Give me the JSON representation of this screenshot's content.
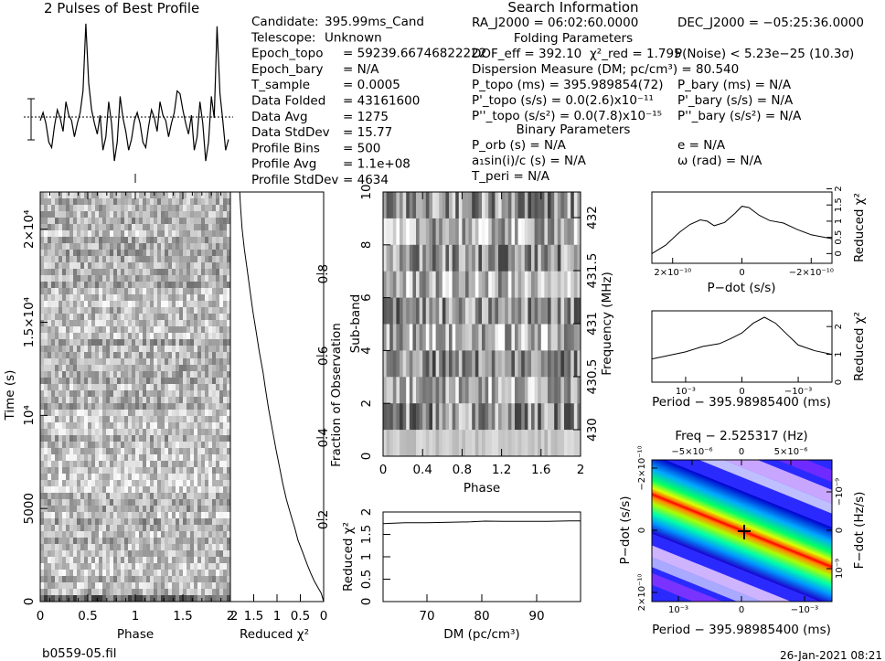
{
  "profile_title": "2 Pulses of Best Profile",
  "search_title": "Search Information",
  "file_name": "b0559-05.fil",
  "date_stamp": "26-Jan-2021 08:21",
  "info_left": [
    {
      "label": "Candidate:",
      "value": "395.99ms_Cand"
    },
    {
      "label": "Telescope:",
      "value": "Unknown"
    },
    {
      "label": "Epoch_topo",
      "value": "= 59239.66746822222"
    },
    {
      "label": "Epoch_bary",
      "value": "= N/A"
    },
    {
      "label": "T_sample",
      "value": "= 0.0005"
    },
    {
      "label": "Data Folded",
      "value": "= 43161600"
    },
    {
      "label": "Data Avg",
      "value": "= 1275"
    },
    {
      "label": "Data StdDev",
      "value": "= 15.77"
    },
    {
      "label": "Profile Bins",
      "value": "= 500"
    },
    {
      "label": "Profile Avg",
      "value": "= 1.1e+08"
    },
    {
      "label": "Profile StdDev",
      "value": "= 4634"
    }
  ],
  "info_right": {
    "ra": "RA_J2000 = 06:02:60.0000",
    "dec": "DEC_J2000 = −05:25:36.0000",
    "folding_header": "Folding Parameters",
    "dof": "DOF_eff = 392.10",
    "chi2": "χ²_red = 1.795",
    "pnoise": "P(Noise) < 5.23e−25 (10.3σ)",
    "dm": "Dispersion Measure (DM; pc/cm³) = 80.540",
    "ptopo": "P_topo (ms) = 395.989854(72)",
    "pbary": "P_bary (ms) = N/A",
    "pdtopo": "P'_topo (s/s) = 0.0(2.6)x10⁻¹¹",
    "pdbary": "P'_bary (s/s) = N/A",
    "pddtopo": "P''_topo (s/s²) = 0.0(7.8)x10⁻¹⁵",
    "pddbary": "P''_bary (s/s²) = N/A",
    "binary_header": "Binary Parameters",
    "porb": "P_orb (s) = N/A",
    "e": "e = N/A",
    "a1": "a₁sin(i)/c (s) = N/A",
    "omega": "ω (rad) = N/A",
    "tperi": "T_peri = N/A"
  },
  "chart_data": [
    {
      "id": "pulse-profile",
      "type": "line",
      "title": "2 Pulses of Best Profile",
      "xlabel": "Phase",
      "ylabel": "",
      "xlim": [
        0,
        2
      ],
      "x": [
        0.0,
        0.03,
        0.06,
        0.09,
        0.12,
        0.15,
        0.18,
        0.21,
        0.24,
        0.27,
        0.3,
        0.33,
        0.36,
        0.39,
        0.42,
        0.45,
        0.48,
        0.51,
        0.54,
        0.57,
        0.6,
        0.63,
        0.66,
        0.69,
        0.72,
        0.75,
        0.78,
        0.81,
        0.84,
        0.87,
        0.9,
        0.93,
        0.96,
        0.99,
        1.02,
        1.05,
        1.08,
        1.11,
        1.14,
        1.17,
        1.2,
        1.23,
        1.26,
        1.29,
        1.32,
        1.35,
        1.38,
        1.41,
        1.44,
        1.47,
        1.5,
        1.53,
        1.56,
        1.59,
        1.62,
        1.65,
        1.68,
        1.71,
        1.74,
        1.77,
        1.8,
        1.83,
        1.86,
        1.89,
        1.92,
        1.95,
        1.98
      ],
      "y": [
        0.2,
        0.5,
        0.1,
        -0.6,
        -0.8,
        0.0,
        0.6,
        0.3,
        -0.2,
        0.9,
        0.4,
        0.2,
        -0.4,
        0.1,
        0.5,
        1.3,
        3.8,
        1.6,
        0.6,
        0.1,
        -0.3,
        0.4,
        -0.9,
        -0.4,
        0.9,
        0.1,
        -1.3,
        -0.6,
        1.1,
        0.3,
        -0.2,
        -0.9,
        -0.5,
        0.2,
        0.5,
        0.1,
        -0.6,
        -0.8,
        0.0,
        0.6,
        0.3,
        -0.2,
        0.9,
        0.4,
        0.2,
        -0.4,
        0.1,
        0.5,
        1.3,
        1.2,
        0.6,
        0.1,
        -0.3,
        0.4,
        -0.9,
        -0.4,
        0.9,
        0.1,
        -1.3,
        -0.6,
        1.1,
        0.3,
        3.7,
        1.2,
        0.2,
        -0.9,
        -0.5
      ]
    },
    {
      "id": "time-phase",
      "type": "heatmap",
      "xlabel": "Phase",
      "ylabel": "Time (s)",
      "xlim": [
        0,
        2
      ],
      "ylim": [
        0,
        22000
      ],
      "xticks": [
        "0",
        "0.5",
        "1",
        "1.5",
        "2"
      ],
      "yticks": [
        {
          "v": 0,
          "label": "0"
        },
        {
          "v": 5000,
          "label": "5000"
        },
        {
          "v": 10000,
          "label": "10⁴"
        },
        {
          "v": 15000,
          "label": "1.5×10⁴"
        },
        {
          "v": 20000,
          "label": "2×10⁴"
        }
      ],
      "colormap": "grayscale"
    },
    {
      "id": "chi2-vs-time",
      "type": "line",
      "xlabel": "Reduced χ²",
      "ylabel": "Fraction of Observation",
      "xlim": [
        2,
        0
      ],
      "ylim": [
        0,
        1
      ],
      "xticks": [
        "2",
        "1.5",
        "1",
        "0.5",
        "0"
      ],
      "yticks": [
        "0.2",
        "0.4",
        "0.6",
        "0.8"
      ],
      "x": [
        0.0,
        0.05,
        0.1,
        0.2,
        0.28,
        0.35,
        0.45,
        0.55,
        0.62,
        0.7,
        0.8,
        0.88,
        0.95,
        1.02,
        1.1,
        1.18,
        1.25,
        1.3,
        1.38,
        1.45,
        1.52,
        1.58,
        1.64,
        1.7,
        1.75,
        1.78,
        1.8
      ],
      "y": [
        0.0,
        0.02,
        0.03,
        0.05,
        0.07,
        0.09,
        0.12,
        0.15,
        0.18,
        0.21,
        0.25,
        0.29,
        0.33,
        0.37,
        0.42,
        0.47,
        0.52,
        0.56,
        0.61,
        0.66,
        0.71,
        0.76,
        0.81,
        0.86,
        0.91,
        0.96,
        1.0
      ]
    },
    {
      "id": "subband-phase",
      "type": "heatmap",
      "xlabel": "Phase",
      "ylabel": "Sub-band",
      "y2label": "Frequency (MHz)",
      "xlim": [
        0,
        2
      ],
      "ylim": [
        0,
        10
      ],
      "xticks": [
        "0",
        "0.4",
        "0.8",
        "1.2",
        "1.6",
        "2"
      ],
      "yticks": [
        "0",
        "2",
        "4",
        "6",
        "8",
        "10"
      ],
      "y2ticks": [
        "430",
        "430.5",
        "431",
        "431.5",
        "432"
      ],
      "colormap": "grayscale"
    },
    {
      "id": "chi2-vs-dm",
      "type": "line",
      "xlabel": "DM (pc/cm³)",
      "ylabel": "Reduced χ²",
      "xlim": [
        62,
        98
      ],
      "ylim": [
        0,
        2
      ],
      "xticks": [
        "70",
        "80",
        "90"
      ],
      "yticks": [
        "0",
        "0.5",
        "1",
        "1.5",
        "2"
      ],
      "x": [
        62,
        66,
        70,
        74,
        78,
        80.54,
        84,
        88,
        92,
        96,
        98
      ],
      "y": [
        1.74,
        1.76,
        1.76,
        1.77,
        1.78,
        1.795,
        1.79,
        1.79,
        1.79,
        1.8,
        1.8
      ]
    },
    {
      "id": "chi2-vs-pdot",
      "type": "line",
      "xlabel": "P−dot (s/s)",
      "ylabel": "Reduced χ²",
      "xlim": [
        2.6e-10,
        -2.6e-10
      ],
      "ylim": [
        0.4,
        1.5
      ],
      "xticks": [
        "2×10⁻¹⁰",
        "0",
        "−2×10⁻¹⁰"
      ],
      "yticks": [
        "0",
        "0.5",
        "1",
        "1.5",
        "2"
      ],
      "x": [
        2.6e-10,
        2.2e-10,
        1.8e-10,
        1.5e-10,
        1.2e-10,
        1e-10,
        8e-11,
        5e-11,
        2e-11,
        0,
        -2e-11,
        -5e-11,
        -8e-11,
        -1.2e-10,
        -1.6e-10,
        -2e-10,
        -2.6e-10
      ],
      "y": [
        0.55,
        0.68,
        0.88,
        1.0,
        1.07,
        1.05,
        0.98,
        1.03,
        1.17,
        1.28,
        1.26,
        1.14,
        1.06,
        1.02,
        0.92,
        0.84,
        0.78
      ]
    },
    {
      "id": "chi2-vs-period",
      "type": "line",
      "xlabel": "Period − 395.98985400 (ms)",
      "ylabel": "Reduced χ²",
      "xlim": [
        0.0016,
        -0.0016
      ],
      "ylim": [
        0.4,
        2.4
      ],
      "xticks": [
        "10⁻³",
        "0",
        "−10⁻³"
      ],
      "yticks": [
        "0",
        "1",
        "2"
      ],
      "x": [
        0.0016,
        0.0013,
        0.001,
        0.0007,
        0.0004,
        0.0002,
        0,
        -0.0002,
        -0.0004,
        -0.0006,
        -0.0008,
        -0.001,
        -0.0013,
        -0.0016
      ],
      "y": [
        1.05,
        1.15,
        1.25,
        1.4,
        1.48,
        1.62,
        1.78,
        2.05,
        2.22,
        2.05,
        1.74,
        1.44,
        1.28,
        1.18
      ]
    },
    {
      "id": "pdot-period-grid",
      "type": "heatmap",
      "title": "Freq − 2.525317 (Hz)",
      "xlabel": "Period − 395.98985400 (ms)",
      "ylabel": "P−dot (s/s)",
      "y2label": "F−dot (Hz/s)",
      "xticks": [
        "10⁻³",
        "0",
        "−10⁻³"
      ],
      "x2ticks": [
        "−5×10⁻⁶",
        "0",
        "5×10⁻⁶"
      ],
      "yticks": [
        "2×10⁻¹⁰",
        "0",
        "−2×10⁻¹⁰"
      ],
      "y2ticks": [
        "10⁻⁹",
        "0",
        "−10⁻⁹"
      ],
      "colormap": "rainbow"
    }
  ]
}
